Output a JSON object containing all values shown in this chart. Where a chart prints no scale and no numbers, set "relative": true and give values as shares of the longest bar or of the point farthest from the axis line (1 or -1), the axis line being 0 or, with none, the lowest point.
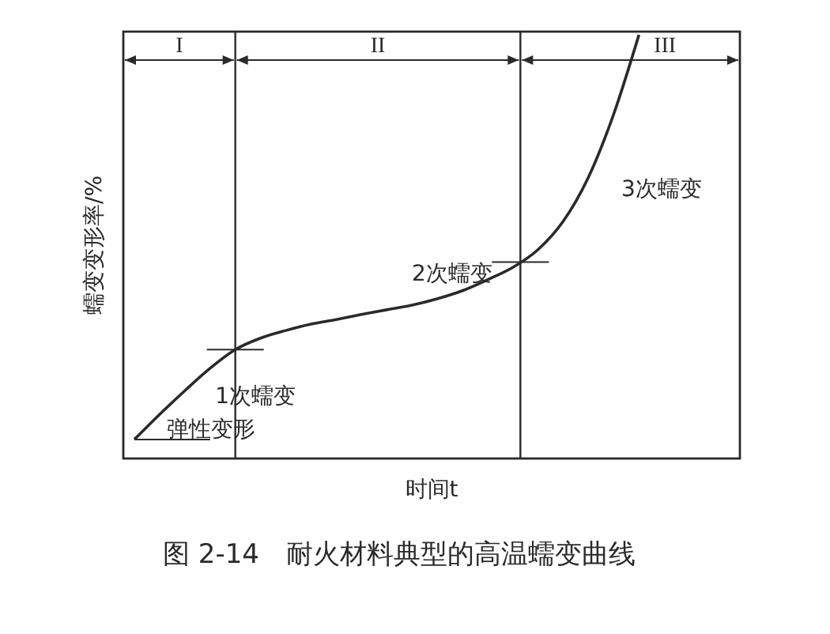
{
  "chart_data": {
    "type": "line",
    "relative": true,
    "title": "图 2-14　耐火材料典型的高温蠕变曲线",
    "xlabel": "时间t",
    "ylabel": "蠕变变形率/%",
    "categories": [
      null,
      null,
      null,
      null,
      null,
      null,
      null,
      null,
      null,
      null,
      null,
      null,
      null,
      null,
      null,
      null,
      null,
      null,
      null,
      null,
      null,
      null,
      null,
      null,
      null
    ],
    "series": [
      {
        "color": "#2a2a2a",
        "values": [
          0.045,
          0.104,
          0.16,
          0.213,
          0.257,
          0.284,
          0.302,
          0.317,
          0.328,
          0.34,
          0.351,
          0.362,
          0.377,
          0.396,
          0.422,
          0.451,
          0.493,
          0.56,
          0.664,
          0.813,
          1.0,
          null,
          null,
          null,
          null
        ]
      }
    ],
    "annotations": [
      "I",
      "II",
      "III",
      "弹性变形",
      "1次蠕变",
      "2次蠕变",
      "3次蠕变"
    ],
    "marker": "none",
    "line_style": "solid"
  }
}
